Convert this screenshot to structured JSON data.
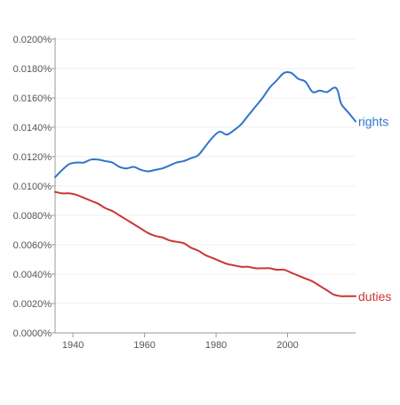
{
  "chart_data": {
    "type": "line",
    "title": "",
    "xlabel": "",
    "ylabel": "",
    "xlim": [
      1935,
      2019
    ],
    "ylim": [
      0,
      0.0002
    ],
    "grid": true,
    "legend": "inline-right",
    "x_ticks": [
      1940,
      1960,
      1980,
      2000
    ],
    "y_ticks": [
      {
        "value": 0,
        "label": "0.0000%"
      },
      {
        "value": 2e-05,
        "label": "0.0020%"
      },
      {
        "value": 4e-05,
        "label": "0.0040%"
      },
      {
        "value": 6e-05,
        "label": "0.0060%"
      },
      {
        "value": 8e-05,
        "label": "0.0080%"
      },
      {
        "value": 0.0001,
        "label": "0.0100%"
      },
      {
        "value": 0.00012,
        "label": "0.0120%"
      },
      {
        "value": 0.00014,
        "label": "0.0140%"
      },
      {
        "value": 0.00016,
        "label": "0.0160%"
      },
      {
        "value": 0.00018,
        "label": "0.0180%"
      },
      {
        "value": 0.0002,
        "label": "0.0200%"
      }
    ],
    "series": [
      {
        "name": "rights",
        "color": "#3075c9",
        "x": [
          1935,
          1937,
          1939,
          1941,
          1943,
          1945,
          1947,
          1949,
          1951,
          1953,
          1955,
          1957,
          1959,
          1961,
          1963,
          1965,
          1967,
          1969,
          1971,
          1973,
          1975,
          1977,
          1979,
          1981,
          1983,
          1985,
          1987,
          1989,
          1991,
          1993,
          1995,
          1997,
          1999,
          2001,
          2003,
          2005,
          2007,
          2009,
          2011,
          2013,
          2014,
          2015,
          2017,
          2019
        ],
        "values": [
          0.000106,
          0.000111,
          0.000115,
          0.000116,
          0.000116,
          0.000118,
          0.000118,
          0.000117,
          0.000116,
          0.000113,
          0.000112,
          0.000113,
          0.000111,
          0.00011,
          0.000111,
          0.000112,
          0.000114,
          0.000116,
          0.000117,
          0.000119,
          0.000121,
          0.000127,
          0.000133,
          0.000137,
          0.000135,
          0.000138,
          0.000142,
          0.000148,
          0.000154,
          0.00016,
          0.000167,
          0.000172,
          0.000177,
          0.000177,
          0.000173,
          0.000171,
          0.000164,
          0.000165,
          0.000164,
          0.000167,
          0.000165,
          0.000156,
          0.00015,
          0.000144
        ]
      },
      {
        "name": "duties",
        "color": "#cc3537",
        "x": [
          1935,
          1937,
          1939,
          1941,
          1943,
          1945,
          1947,
          1949,
          1951,
          1953,
          1955,
          1957,
          1959,
          1961,
          1963,
          1965,
          1967,
          1969,
          1971,
          1973,
          1975,
          1977,
          1979,
          1981,
          1983,
          1985,
          1987,
          1989,
          1991,
          1993,
          1995,
          1997,
          1999,
          2001,
          2003,
          2005,
          2007,
          2009,
          2011,
          2013,
          2015,
          2017,
          2019
        ],
        "values": [
          9.6e-05,
          9.5e-05,
          9.5e-05,
          9.4e-05,
          9.2e-05,
          9e-05,
          8.8e-05,
          8.5e-05,
          8.3e-05,
          8e-05,
          7.7e-05,
          7.4e-05,
          7.1e-05,
          6.8e-05,
          6.6e-05,
          6.5e-05,
          6.3e-05,
          6.2e-05,
          6.1e-05,
          5.8e-05,
          5.6e-05,
          5.3e-05,
          5.1e-05,
          4.9e-05,
          4.7e-05,
          4.6e-05,
          4.5e-05,
          4.5e-05,
          4.4e-05,
          4.4e-05,
          4.4e-05,
          4.3e-05,
          4.3e-05,
          4.1e-05,
          3.9e-05,
          3.7e-05,
          3.5e-05,
          3.2e-05,
          2.9e-05,
          2.6e-05,
          2.5e-05,
          2.5e-05,
          2.5e-05
        ]
      }
    ]
  }
}
